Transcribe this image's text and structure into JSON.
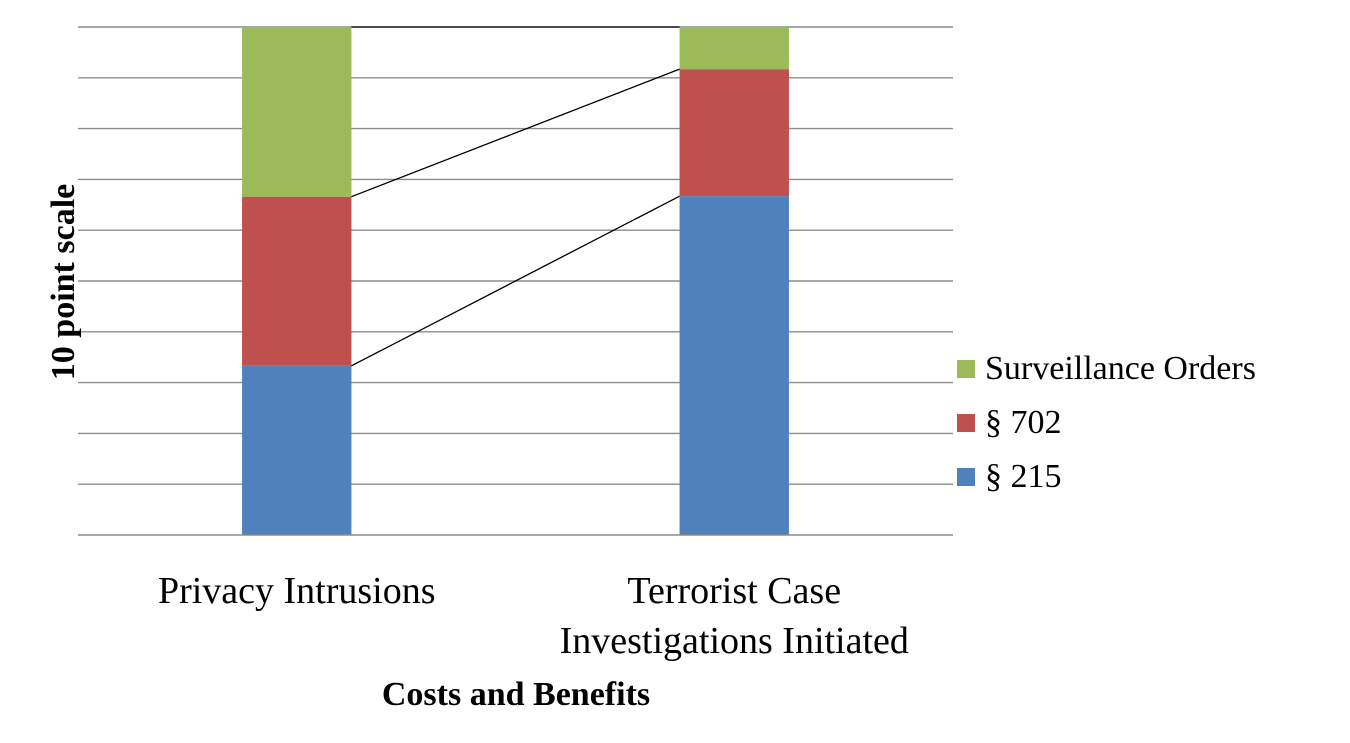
{
  "chart_data": {
    "type": "bar",
    "stacked": true,
    "categories": [
      "Privacy Intrusions",
      "Terrorist Case Investigations Initiated"
    ],
    "category_lines": [
      [
        "Privacy Intrusions"
      ],
      [
        "Terrorist Case",
        "Investigations Initiated"
      ]
    ],
    "series": [
      {
        "name": "§ 215",
        "values": [
          3.33,
          6.67
        ],
        "color": "#4f81bd"
      },
      {
        "name": "§ 702",
        "values": [
          3.33,
          2.5
        ],
        "color": "#c0504d"
      },
      {
        "name": "Surveillance Orders",
        "values": [
          3.34,
          0.83
        ],
        "color": "#9bbb59"
      }
    ],
    "ylabel": "10 point scale",
    "xlabel": "Costs and Benefits",
    "ylim": [
      0,
      10
    ],
    "ytick_step": 1,
    "ytick_labels_shown": false,
    "grid": true,
    "series_lines": true,
    "legend_position": "right"
  }
}
